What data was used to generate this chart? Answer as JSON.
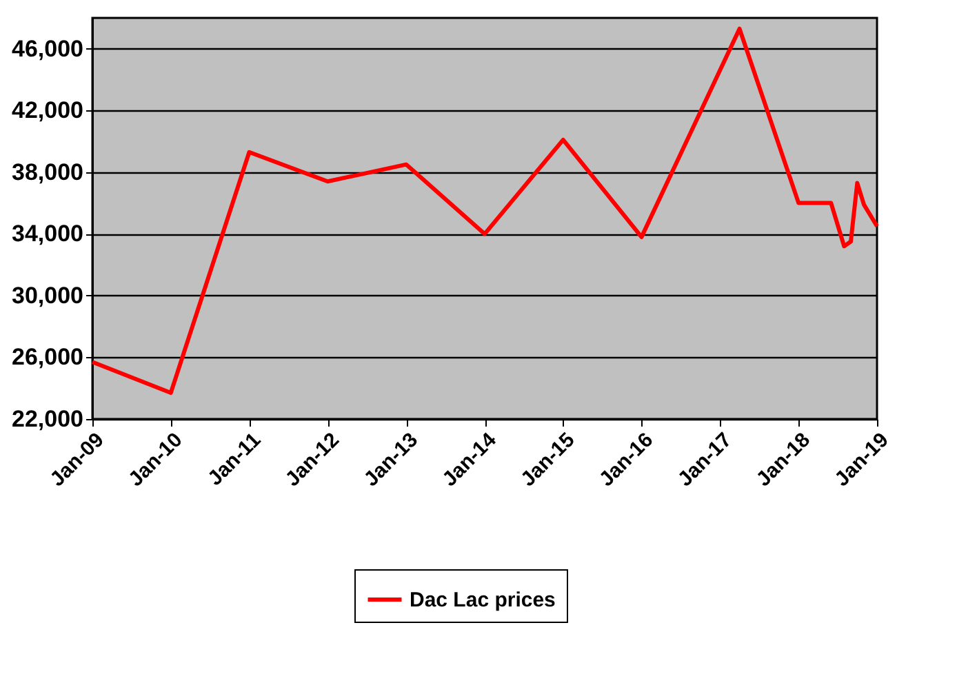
{
  "chart_data": {
    "type": "line",
    "x": [
      "2009-01",
      "2010-01",
      "2011-01",
      "2012-01",
      "2013-01",
      "2014-01",
      "2015-01",
      "2016-01",
      "2017-04",
      "2018-01",
      "2018-06",
      "2018-08",
      "2018-09",
      "2018-10",
      "2018-11",
      "2019-01"
    ],
    "series": [
      {
        "name": "Dac Lac prices",
        "color": "#ff0000",
        "values": [
          25700,
          23700,
          39300,
          37400,
          38500,
          34000,
          40100,
          33800,
          47300,
          36000,
          36000,
          33200,
          33500,
          37300,
          35900,
          34500
        ]
      }
    ],
    "xlim": [
      "2009-01",
      "2019-01"
    ],
    "xticks": [
      {
        "value": "2009-01",
        "label": "Jan-09"
      },
      {
        "value": "2010-01",
        "label": "Jan-10"
      },
      {
        "value": "2011-01",
        "label": "Jan-11"
      },
      {
        "value": "2012-01",
        "label": "Jan-12"
      },
      {
        "value": "2013-01",
        "label": "Jan-13"
      },
      {
        "value": "2014-01",
        "label": "Jan-14"
      },
      {
        "value": "2015-01",
        "label": "Jan-15"
      },
      {
        "value": "2016-01",
        "label": "Jan-16"
      },
      {
        "value": "2017-01",
        "label": "Jan-17"
      },
      {
        "value": "2018-01",
        "label": "Jan-18"
      },
      {
        "value": "2019-01",
        "label": "Jan-19"
      }
    ],
    "ylim": [
      22000,
      48000
    ],
    "yticks": [
      {
        "value": 22000,
        "label": "22,000"
      },
      {
        "value": 26000,
        "label": "26,000"
      },
      {
        "value": 30000,
        "label": "30,000"
      },
      {
        "value": 34000,
        "label": "34,000"
      },
      {
        "value": 38000,
        "label": "38,000"
      },
      {
        "value": 42000,
        "label": "42,000"
      },
      {
        "value": 46000,
        "label": "46,000"
      }
    ],
    "grid": "y",
    "legend": "bottom",
    "marker": "none",
    "line_style": "solid"
  }
}
